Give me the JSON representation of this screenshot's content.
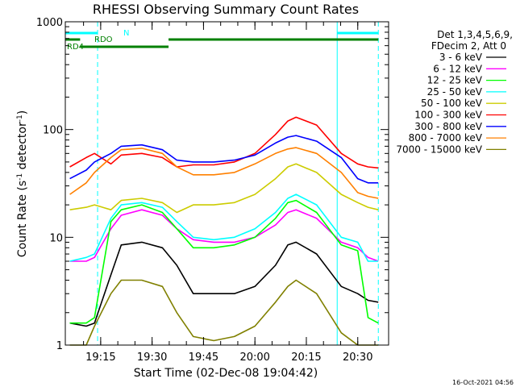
{
  "chart_data": {
    "type": "line",
    "title": "RHESSI Observing Summary Count Rates",
    "xlabel": "Start Time (02-Dec-08 19:04:42)",
    "ylabel_main": "Count Rate (s",
    "ylabel_sup": "-1",
    "ylabel_tail": " detector",
    "ylabel_end": ")",
    "yscale": "log",
    "ylim": [
      1,
      1000
    ],
    "y_ticks": [
      {
        "value": 1,
        "label": "1"
      },
      {
        "value": 10,
        "label": "10"
      },
      {
        "value": 100,
        "label": "100"
      },
      {
        "value": 1000,
        "label": "1000"
      }
    ],
    "x_ticks": [
      "19:15",
      "19:30",
      "19:45",
      "20:00",
      "20:15",
      "20:30"
    ],
    "legend_header": [
      "Det 1,3,4,5,6,9,",
      "FDecim 2, Att 0"
    ],
    "legend_placement": "right",
    "footer": "16-Oct-2021 04:56",
    "flags": [
      {
        "label": "N",
        "color": "#00ffff"
      },
      {
        "label": "RDO",
        "color": "#008000"
      },
      {
        "label": "RD4",
        "color": "#008000"
      }
    ],
    "series": [
      {
        "name": "3 - 6 keV",
        "color": "#000000",
        "x": [
          19.1,
          19.18,
          19.22,
          19.3,
          19.35,
          19.45,
          19.55,
          19.62,
          19.7,
          19.8,
          19.9,
          20.0,
          20.1,
          20.16,
          20.2,
          20.3,
          20.42,
          20.5,
          20.55,
          20.6
        ],
        "values": [
          1.6,
          1.5,
          1.6,
          4.5,
          8.5,
          9,
          8,
          5.5,
          3,
          3,
          3,
          3.5,
          5.5,
          8.5,
          9,
          7,
          3.5,
          3,
          2.6,
          2.5
        ]
      },
      {
        "name": "6 - 12 keV",
        "color": "#ff00ff",
        "x": [
          19.1,
          19.18,
          19.22,
          19.3,
          19.35,
          19.45,
          19.55,
          19.62,
          19.7,
          19.8,
          19.9,
          20.0,
          20.1,
          20.16,
          20.2,
          20.3,
          20.42,
          20.5,
          20.55,
          20.6
        ],
        "values": [
          6,
          6,
          6.5,
          12,
          16,
          18,
          16,
          12,
          9.5,
          9,
          9,
          10,
          13,
          17,
          18,
          15,
          9,
          8,
          6.5,
          6
        ]
      },
      {
        "name": "12 - 25 keV",
        "color": "#00ff00",
        "x": [
          19.1,
          19.18,
          19.22,
          19.3,
          19.35,
          19.45,
          19.55,
          19.62,
          19.7,
          19.8,
          19.9,
          20.0,
          20.1,
          20.16,
          20.2,
          20.3,
          20.42,
          20.5,
          20.55,
          20.6
        ],
        "values": [
          1.6,
          1.6,
          1.8,
          14,
          18,
          20,
          17,
          12,
          8,
          8,
          8.5,
          10,
          15,
          21,
          22,
          17,
          8.5,
          7.5,
          1.8,
          1.6
        ]
      },
      {
        "name": "25 - 50 keV",
        "color": "#00ffff",
        "x": [
          19.1,
          19.18,
          19.22,
          19.3,
          19.35,
          19.45,
          19.55,
          19.62,
          19.7,
          19.8,
          19.9,
          20.0,
          20.1,
          20.16,
          20.2,
          20.3,
          20.42,
          20.5,
          20.55,
          20.6
        ],
        "values": [
          6,
          6.5,
          7,
          15,
          20,
          21,
          19,
          14,
          10,
          9.5,
          10,
          12,
          17,
          23,
          25,
          20,
          10,
          9,
          6,
          6
        ]
      },
      {
        "name": "50 - 100 keV",
        "color": "#cccc00",
        "x": [
          19.1,
          19.18,
          19.22,
          19.3,
          19.35,
          19.45,
          19.55,
          19.62,
          19.7,
          19.8,
          19.9,
          20.0,
          20.1,
          20.16,
          20.2,
          20.3,
          20.42,
          20.5,
          20.55,
          20.6
        ],
        "values": [
          18,
          19,
          20,
          18,
          22,
          23,
          21,
          17,
          20,
          20,
          21,
          25,
          35,
          45,
          48,
          40,
          25,
          21,
          19,
          18
        ]
      },
      {
        "name": "100 - 300 keV",
        "color": "#ff0000",
        "x": [
          19.1,
          19.18,
          19.22,
          19.3,
          19.35,
          19.45,
          19.55,
          19.62,
          19.7,
          19.8,
          19.9,
          20.0,
          20.1,
          20.16,
          20.2,
          20.3,
          20.42,
          20.5,
          20.55,
          20.6
        ],
        "values": [
          45,
          55,
          60,
          48,
          58,
          60,
          55,
          45,
          47,
          47,
          50,
          60,
          90,
          120,
          130,
          110,
          60,
          48,
          45,
          44
        ]
      },
      {
        "name": "300 - 800 keV",
        "color": "#0000ff",
        "x": [
          19.1,
          19.18,
          19.22,
          19.3,
          19.35,
          19.45,
          19.55,
          19.62,
          19.7,
          19.8,
          19.9,
          20.0,
          20.1,
          20.16,
          20.2,
          20.3,
          20.42,
          20.5,
          20.55,
          20.6
        ],
        "values": [
          35,
          42,
          50,
          60,
          70,
          72,
          65,
          52,
          50,
          50,
          52,
          58,
          75,
          85,
          88,
          78,
          55,
          35,
          32,
          32
        ]
      },
      {
        "name": "800 - 7000 keV",
        "color": "#ff8000",
        "x": [
          19.1,
          19.18,
          19.22,
          19.3,
          19.35,
          19.45,
          19.55,
          19.62,
          19.7,
          19.8,
          19.9,
          20.0,
          20.1,
          20.16,
          20.2,
          20.3,
          20.42,
          20.5,
          20.55,
          20.6
        ],
        "values": [
          25,
          32,
          40,
          55,
          65,
          67,
          60,
          45,
          38,
          38,
          40,
          48,
          60,
          66,
          68,
          60,
          40,
          26,
          24,
          23
        ]
      },
      {
        "name": "7000 - 15000 keV",
        "color": "#808000",
        "x": [
          19.1,
          19.18,
          19.22,
          19.3,
          19.35,
          19.45,
          19.55,
          19.62,
          19.7,
          19.8,
          19.9,
          20.0,
          20.1,
          20.16,
          20.2,
          20.3,
          20.42,
          20.5,
          20.55,
          20.6
        ],
        "values": [
          1,
          1,
          1.5,
          3,
          4,
          4,
          3.5,
          2,
          1.2,
          1.1,
          1.2,
          1.5,
          2.5,
          3.5,
          4,
          3,
          1.3,
          1,
          1,
          1
        ]
      }
    ]
  }
}
